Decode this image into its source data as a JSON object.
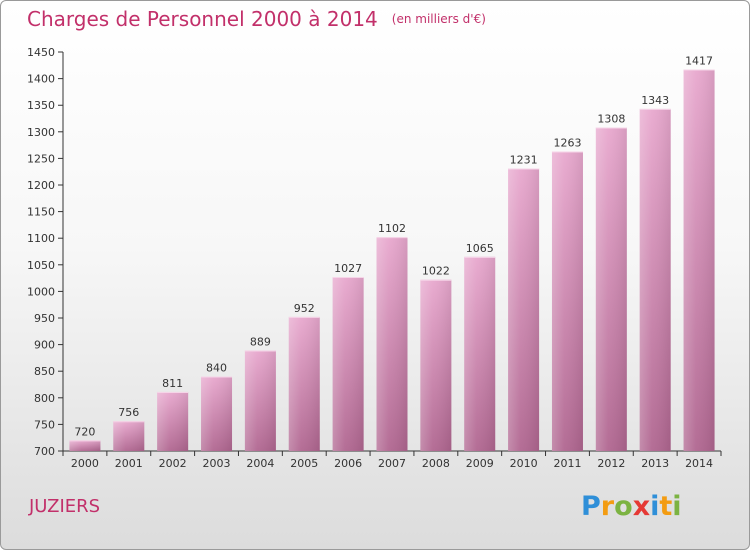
{
  "header": {
    "title": "Charges de Personnel 2000 à 2014",
    "subtitle": "(en milliers d'€)"
  },
  "footer": {
    "city": "JUZIERS",
    "logo_letters": [
      {
        "char": "P",
        "color": "#2f8fd8"
      },
      {
        "char": "r",
        "color": "#f39c12"
      },
      {
        "char": "o",
        "color": "#7cb342"
      },
      {
        "char": "x",
        "color": "#e53935"
      },
      {
        "char": "i",
        "color": "#2f8fd8"
      },
      {
        "char": "t",
        "color": "#f39c12"
      },
      {
        "char": "i",
        "color": "#7cb342"
      }
    ]
  },
  "chart_data": {
    "type": "bar",
    "title": "Charges de Personnel 2000 à 2014",
    "subtitle": "(en milliers d'€)",
    "xlabel": "",
    "ylabel": "",
    "categories": [
      "2000",
      "2001",
      "2002",
      "2003",
      "2004",
      "2005",
      "2006",
      "2007",
      "2008",
      "2009",
      "2010",
      "2011",
      "2012",
      "2013",
      "2014"
    ],
    "values": [
      720,
      756,
      811,
      840,
      889,
      952,
      1027,
      1102,
      1022,
      1065,
      1231,
      1263,
      1308,
      1343,
      1417
    ],
    "ylim": [
      700,
      1450
    ],
    "yticks": [
      700,
      750,
      800,
      850,
      900,
      950,
      1000,
      1050,
      1100,
      1150,
      1200,
      1250,
      1300,
      1350,
      1400,
      1450
    ],
    "grid": false,
    "colors": {
      "bar_light": "#e8a8ce",
      "bar_dark": "#b06690",
      "axis": "#333333"
    }
  }
}
